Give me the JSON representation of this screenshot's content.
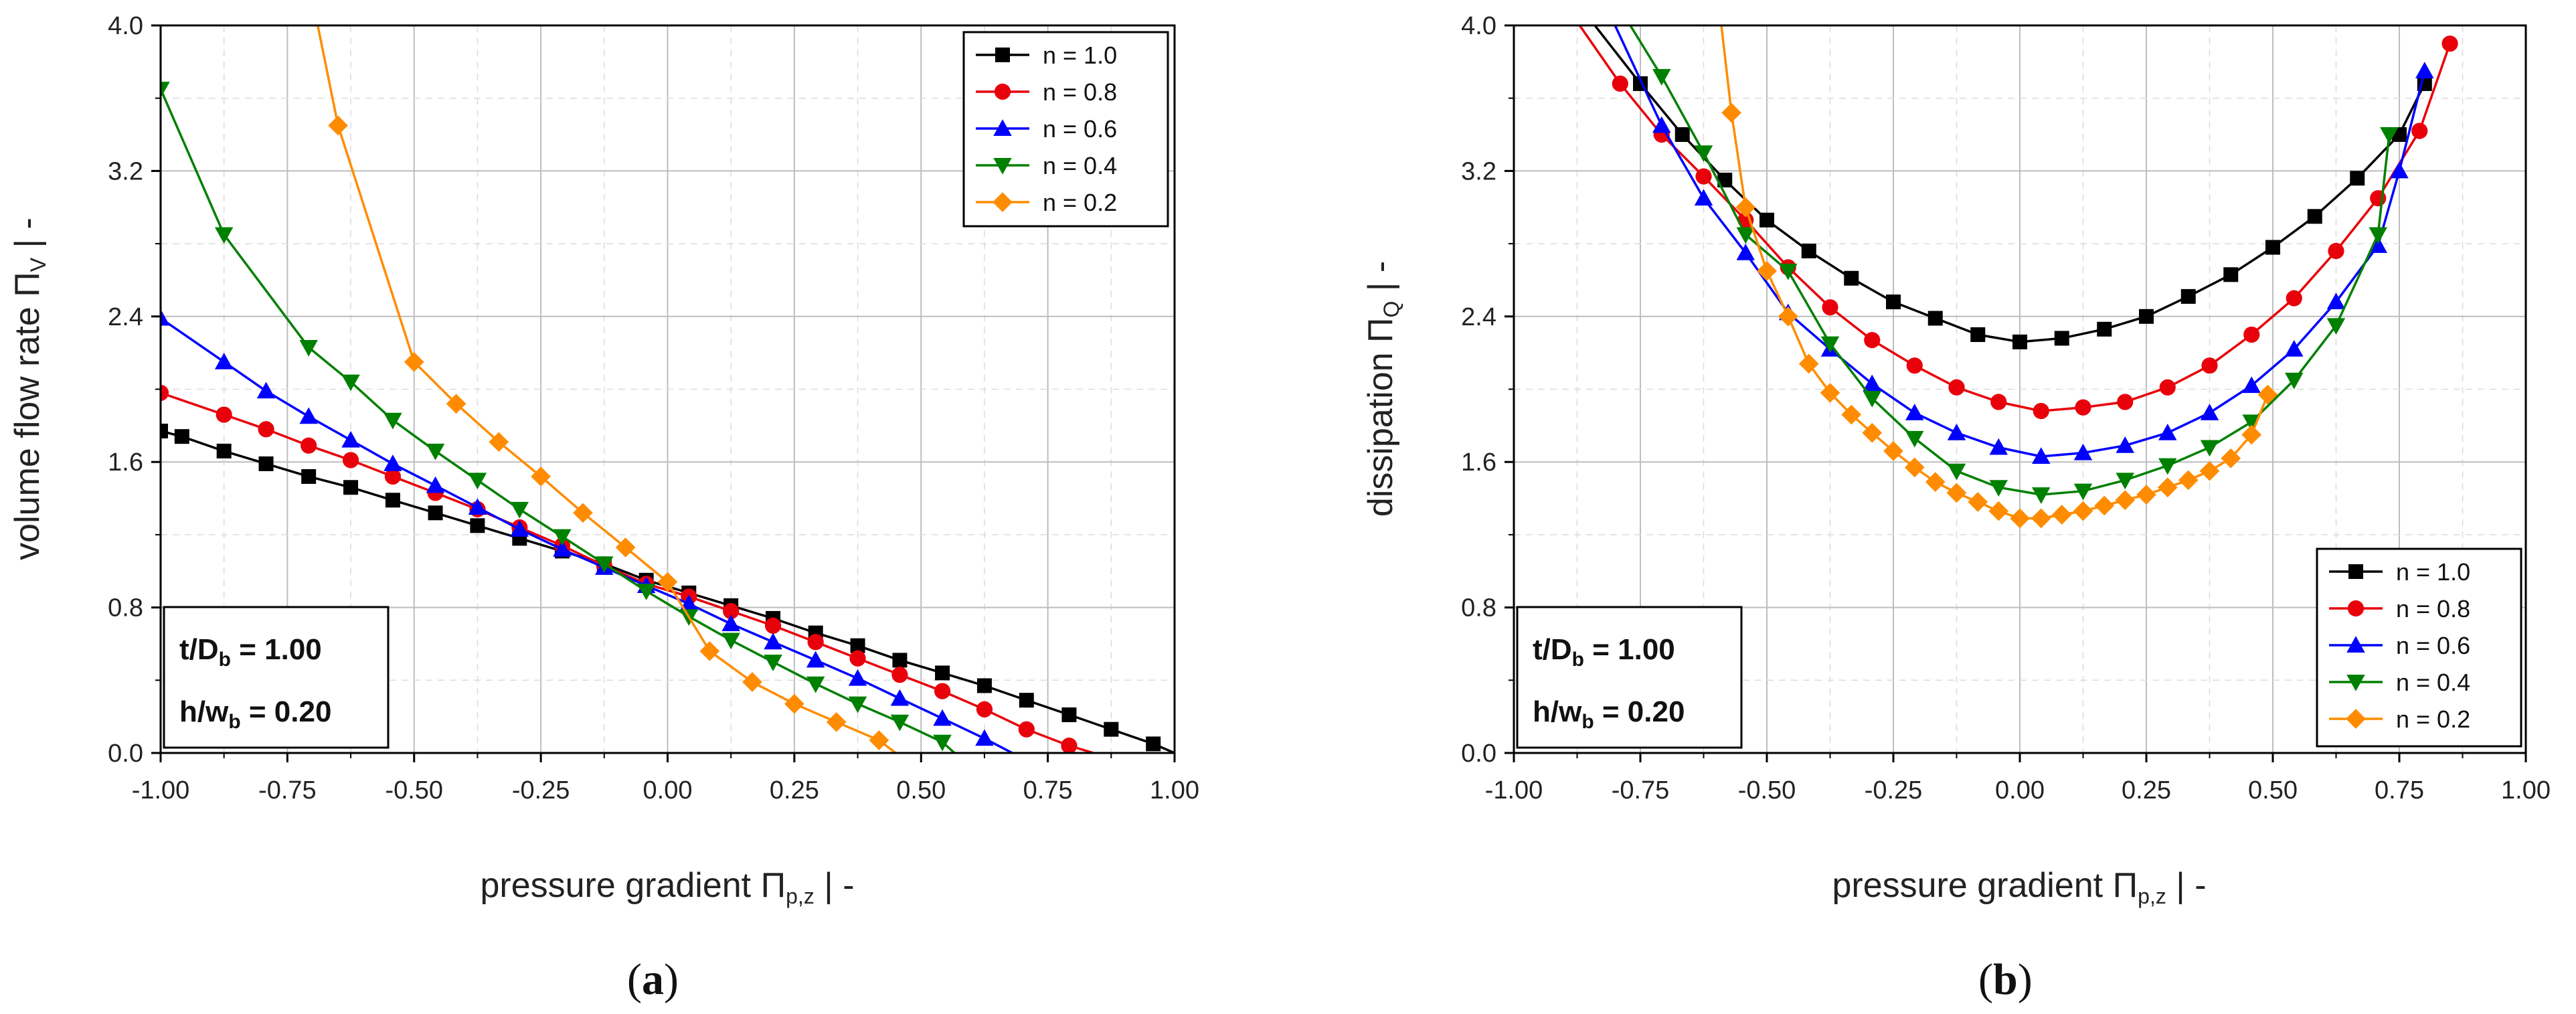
{
  "chart_data": [
    {
      "type": "line",
      "panel": "a",
      "caption_open": "(",
      "caption": "a",
      "caption_close": ")",
      "title": "",
      "xlabel_prefix": "pressure gradient Π",
      "xlabel_sub": "p,z",
      "xlabel_suffix": "  |  -",
      "ylabel_prefix": "volume flow rate Π",
      "ylabel_sub": "V",
      "ylabel_suffix": "  |  -",
      "xlim": [
        -1.0,
        1.0
      ],
      "ylim": [
        0.0,
        4.0
      ],
      "xticks": [
        "-1.00",
        "-0.75",
        "-0.50",
        "-0.25",
        "0.00",
        "0.25",
        "0.50",
        "0.75",
        "1.00"
      ],
      "yticks": [
        "0.0",
        "0.8",
        "1.6",
        "2.4",
        "3.2",
        "4.0"
      ],
      "legend_position": "top-right",
      "annotation": {
        "l1": "t/D",
        "l1_sub": "b",
        "l1_val": " = 1.00",
        "l2": "h/w",
        "l2_sub": "b",
        "l2_val": " = 0.20"
      },
      "series": [
        {
          "name": "n = 1.0",
          "color": "#000000",
          "marker": "square",
          "x": [
            -1.0,
            -0.958,
            -0.875,
            -0.792,
            -0.708,
            -0.625,
            -0.542,
            -0.458,
            -0.375,
            -0.292,
            -0.208,
            -0.125,
            -0.042,
            0.042,
            0.125,
            0.208,
            0.292,
            0.375,
            0.458,
            0.542,
            0.625,
            0.708,
            0.792,
            0.875,
            0.958,
            1.0
          ],
          "y": [
            1.77,
            1.74,
            1.66,
            1.59,
            1.52,
            1.46,
            1.39,
            1.32,
            1.25,
            1.18,
            1.11,
            1.04,
            0.95,
            0.88,
            0.81,
            0.74,
            0.66,
            0.59,
            0.51,
            0.44,
            0.37,
            0.29,
            0.21,
            0.13,
            0.05,
            0.0
          ]
        },
        {
          "name": "n = 0.8",
          "color": "#e8000b",
          "marker": "circle",
          "x": [
            -1.0,
            -0.875,
            -0.792,
            -0.708,
            -0.625,
            -0.542,
            -0.458,
            -0.375,
            -0.292,
            -0.208,
            -0.125,
            -0.042,
            0.042,
            0.125,
            0.208,
            0.292,
            0.375,
            0.458,
            0.542,
            0.625,
            0.708,
            0.792,
            0.84
          ],
          "y": [
            1.98,
            1.86,
            1.78,
            1.69,
            1.61,
            1.52,
            1.43,
            1.34,
            1.24,
            1.14,
            1.03,
            0.93,
            0.86,
            0.78,
            0.7,
            0.61,
            0.52,
            0.43,
            0.34,
            0.24,
            0.13,
            0.04,
            0.0
          ]
        },
        {
          "name": "n = 0.6",
          "color": "#0000ff",
          "marker": "triangle-up",
          "x": [
            -1.0,
            -0.875,
            -0.792,
            -0.708,
            -0.625,
            -0.542,
            -0.458,
            -0.375,
            -0.292,
            -0.208,
            -0.125,
            -0.042,
            0.042,
            0.125,
            0.208,
            0.292,
            0.375,
            0.458,
            0.542,
            0.625,
            0.68
          ],
          "y": [
            2.39,
            2.15,
            1.99,
            1.85,
            1.72,
            1.59,
            1.47,
            1.35,
            1.23,
            1.12,
            1.02,
            0.92,
            0.82,
            0.71,
            0.61,
            0.51,
            0.41,
            0.3,
            0.19,
            0.08,
            0.0
          ]
        },
        {
          "name": "n = 0.4",
          "color": "#008000",
          "marker": "triangle-down",
          "x": [
            -1.0,
            -0.875,
            -0.708,
            -0.625,
            -0.542,
            -0.458,
            -0.375,
            -0.292,
            -0.208,
            -0.125,
            -0.042,
            0.042,
            0.125,
            0.208,
            0.292,
            0.375,
            0.458,
            0.542,
            0.566
          ],
          "y": [
            3.65,
            2.85,
            2.23,
            2.04,
            1.83,
            1.66,
            1.5,
            1.34,
            1.19,
            1.04,
            0.89,
            0.75,
            0.62,
            0.5,
            0.38,
            0.27,
            0.17,
            0.06,
            0.0
          ]
        },
        {
          "name": "n = 0.2",
          "color": "#ff8c00",
          "marker": "diamond",
          "x": [
            -0.69,
            -0.65,
            -0.5,
            -0.417,
            -0.333,
            -0.25,
            -0.167,
            -0.083,
            0.0,
            0.083,
            0.167,
            0.25,
            0.333,
            0.417,
            0.45
          ],
          "y": [
            4.0,
            3.45,
            2.15,
            1.92,
            1.71,
            1.52,
            1.32,
            1.13,
            0.94,
            0.56,
            0.39,
            0.27,
            0.17,
            0.07,
            0.0
          ]
        }
      ]
    },
    {
      "type": "line",
      "panel": "b",
      "caption_open": "(",
      "caption": "b",
      "caption_close": ")",
      "title": "",
      "xlabel_prefix": "pressure gradient Π",
      "xlabel_sub": "p,z",
      "xlabel_suffix": "  |  -",
      "ylabel_prefix": "dissipation Π",
      "ylabel_sub": "Q",
      "ylabel_suffix": "  |  -",
      "xlim": [
        -1.0,
        1.0
      ],
      "ylim": [
        0.0,
        4.0
      ],
      "xticks": [
        "-1.00",
        "-0.75",
        "-0.50",
        "-0.25",
        "0.00",
        "0.25",
        "0.50",
        "0.75",
        "1.00"
      ],
      "yticks": [
        "0.0",
        "0.8",
        "1.6",
        "2.4",
        "3.2",
        "4.0"
      ],
      "legend_position": "bottom-right",
      "annotation": {
        "l1": "t/D",
        "l1_sub": "b",
        "l1_val": " = 1.00",
        "l2": "h/w",
        "l2_sub": "b",
        "l2_val": " = 0.20"
      },
      "series": [
        {
          "name": "n = 1.0",
          "color": "#000000",
          "marker": "square",
          "x": [
            -0.84,
            -0.75,
            -0.667,
            -0.583,
            -0.5,
            -0.417,
            -0.333,
            -0.25,
            -0.167,
            -0.083,
            0.0,
            0.083,
            0.167,
            0.25,
            0.333,
            0.417,
            0.5,
            0.583,
            0.667,
            0.75,
            0.8
          ],
          "y": [
            4.0,
            3.68,
            3.4,
            3.15,
            2.93,
            2.76,
            2.61,
            2.48,
            2.39,
            2.3,
            2.26,
            2.28,
            2.33,
            2.4,
            2.51,
            2.63,
            2.78,
            2.95,
            3.16,
            3.4,
            3.68
          ]
        },
        {
          "name": "n = 0.8",
          "color": "#e8000b",
          "marker": "circle",
          "x": [
            -0.87,
            -0.79,
            -0.708,
            -0.625,
            -0.542,
            -0.458,
            -0.375,
            -0.292,
            -0.208,
            -0.125,
            -0.042,
            0.042,
            0.125,
            0.208,
            0.292,
            0.375,
            0.458,
            0.542,
            0.625,
            0.708,
            0.79,
            0.85
          ],
          "y": [
            4.0,
            3.68,
            3.4,
            3.17,
            2.93,
            2.67,
            2.45,
            2.27,
            2.13,
            2.01,
            1.93,
            1.88,
            1.9,
            1.93,
            2.01,
            2.13,
            2.3,
            2.5,
            2.76,
            3.05,
            3.42,
            3.9
          ]
        },
        {
          "name": "n = 0.6",
          "color": "#0000ff",
          "marker": "triangle-up",
          "x": [
            -0.8,
            -0.708,
            -0.625,
            -0.542,
            -0.458,
            -0.375,
            -0.292,
            -0.208,
            -0.125,
            -0.042,
            0.042,
            0.125,
            0.208,
            0.292,
            0.375,
            0.458,
            0.542,
            0.625,
            0.708,
            0.75,
            0.8
          ],
          "y": [
            4.0,
            3.45,
            3.05,
            2.75,
            2.42,
            2.22,
            2.03,
            1.87,
            1.76,
            1.68,
            1.63,
            1.65,
            1.69,
            1.76,
            1.87,
            2.02,
            2.22,
            2.48,
            2.79,
            3.2,
            3.75
          ]
        },
        {
          "name": "n = 0.4",
          "color": "#008000",
          "marker": "triangle-down",
          "x": [
            -0.77,
            -0.708,
            -0.625,
            -0.542,
            -0.458,
            -0.375,
            -0.292,
            -0.208,
            -0.125,
            -0.042,
            0.042,
            0.125,
            0.208,
            0.292,
            0.375,
            0.458,
            0.542,
            0.625,
            0.708,
            0.73
          ],
          "y": [
            4.0,
            3.72,
            3.3,
            2.85,
            2.65,
            2.25,
            1.95,
            1.73,
            1.55,
            1.46,
            1.42,
            1.44,
            1.5,
            1.58,
            1.68,
            1.82,
            2.05,
            2.35,
            2.85,
            3.4
          ]
        },
        {
          "name": "n = 0.2",
          "color": "#ff8c00",
          "marker": "diamond",
          "x": [
            -0.59,
            -0.57,
            -0.542,
            -0.5,
            -0.458,
            -0.417,
            -0.375,
            -0.333,
            -0.292,
            -0.25,
            -0.208,
            -0.167,
            -0.125,
            -0.083,
            -0.042,
            0.0,
            0.042,
            0.083,
            0.125,
            0.167,
            0.208,
            0.25,
            0.292,
            0.333,
            0.375,
            0.417,
            0.458,
            0.49
          ],
          "y": [
            4.0,
            3.52,
            3.0,
            2.65,
            2.4,
            2.14,
            1.98,
            1.86,
            1.76,
            1.66,
            1.57,
            1.49,
            1.43,
            1.38,
            1.33,
            1.29,
            1.29,
            1.31,
            1.33,
            1.36,
            1.39,
            1.42,
            1.46,
            1.5,
            1.55,
            1.62,
            1.75,
            1.97
          ]
        }
      ]
    }
  ]
}
